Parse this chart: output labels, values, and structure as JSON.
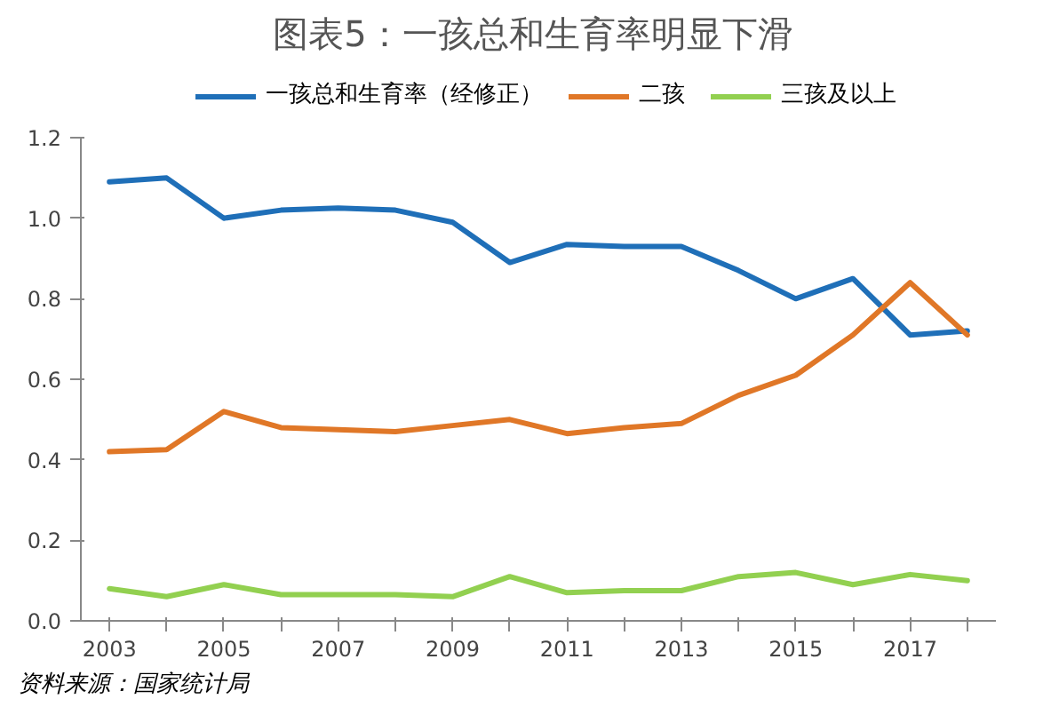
{
  "chart_data": {
    "type": "line",
    "title": "图表5：一孩总和生育率明显下滑",
    "categories": [
      "2003",
      null,
      "2005",
      null,
      "2007",
      null,
      "2009",
      null,
      "2011",
      null,
      "2013",
      null,
      "2015",
      null,
      "2017",
      null
    ],
    "series": [
      {
        "name": "一孩总和生育率（经修正）",
        "color": "#1f6fb8",
        "values": [
          1.09,
          1.1,
          1.0,
          1.02,
          1.025,
          1.02,
          0.99,
          0.89,
          0.935,
          0.93,
          0.93,
          0.87,
          0.8,
          0.85,
          0.71,
          0.72
        ]
      },
      {
        "name": "二孩",
        "color": "#e07727",
        "values": [
          0.42,
          0.425,
          0.52,
          0.48,
          0.475,
          0.47,
          0.485,
          0.5,
          0.465,
          0.48,
          0.49,
          0.56,
          0.61,
          0.71,
          0.84,
          0.71
        ]
      },
      {
        "name": "三孩及以上",
        "color": "#92d050",
        "values": [
          0.08,
          0.06,
          0.09,
          0.065,
          0.065,
          0.065,
          0.06,
          0.11,
          0.07,
          0.075,
          0.075,
          0.11,
          0.12,
          0.09,
          0.115,
          0.1
        ]
      }
    ],
    "ylim": [
      0,
      1.2
    ],
    "yticks": [
      {
        "value": 0,
        "label": "0.0"
      },
      {
        "value": 0.2,
        "label": "0.2"
      },
      {
        "value": 0.4,
        "label": "0.4"
      },
      {
        "value": 0.6,
        "label": "0.6"
      },
      {
        "value": 0.8,
        "label": "0.8"
      },
      {
        "value": 1.0,
        "label": "1.0"
      },
      {
        "value": 1.2,
        "label": "1.2"
      }
    ],
    "grid": false,
    "legend": "top",
    "marker": "none",
    "line_style": "solid",
    "annotations": [
      "资料来源：国家统计局"
    ]
  }
}
